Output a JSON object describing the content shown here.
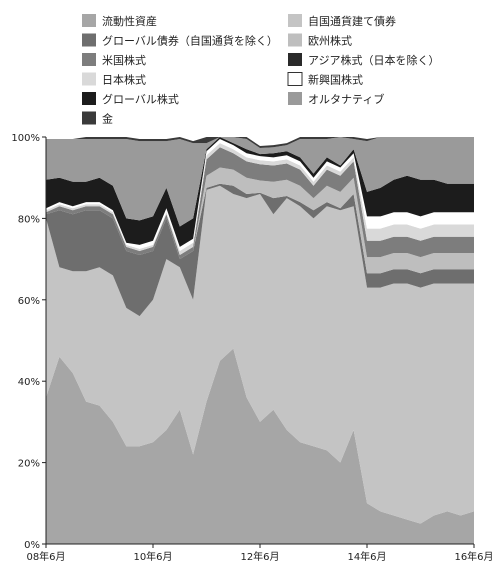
{
  "chart_data": {
    "type": "area",
    "stacked": true,
    "percent_axis": true,
    "x": [
      "2008-06",
      "2008-09",
      "2008-12",
      "2009-03",
      "2009-06",
      "2009-09",
      "2009-12",
      "2010-03",
      "2010-06",
      "2010-09",
      "2010-12",
      "2011-03",
      "2011-06",
      "2011-09",
      "2011-12",
      "2012-03",
      "2012-06",
      "2012-09",
      "2012-12",
      "2013-03",
      "2013-06",
      "2013-09",
      "2013-12",
      "2014-03",
      "2014-06",
      "2014-09",
      "2014-12",
      "2015-03",
      "2015-06",
      "2015-09",
      "2015-12",
      "2016-03",
      "2016-06"
    ],
    "xticks": [
      "08年6月",
      "10年6月",
      "12年6月",
      "14年6月",
      "16年6月"
    ],
    "yticks": [
      "0%",
      "20%",
      "40%",
      "60%",
      "80%",
      "100%"
    ],
    "ylim": [
      0,
      100
    ],
    "xlabel": "",
    "ylabel": "",
    "title": "",
    "legend_position": "top",
    "series": [
      {
        "name": "流動性資産",
        "color": "#a6a6a6",
        "values": [
          36,
          46,
          42,
          35,
          34,
          30,
          24,
          24,
          25,
          28,
          33,
          22,
          35,
          45,
          48,
          36,
          30,
          33,
          28,
          25,
          24,
          23,
          20,
          28,
          10,
          8,
          7,
          6,
          5,
          7,
          8,
          7,
          8
        ]
      },
      {
        "name": "自国通貨建て債券",
        "color": "#c4c4c4",
        "values": [
          44,
          22,
          25,
          32,
          34,
          36,
          34,
          32,
          35,
          42,
          35,
          38,
          52,
          43,
          38,
          49,
          56,
          48,
          57,
          58,
          56,
          60,
          62,
          55,
          53,
          55,
          57,
          58,
          58,
          57,
          56,
          57,
          56
        ]
      },
      {
        "name": "グローバル債券（自国通貨を除く）",
        "color": "#6e6e6e",
        "values": [
          1,
          14,
          14,
          15,
          14,
          14,
          14,
          15,
          12,
          10,
          2,
          12,
          0.5,
          0.5,
          2,
          1,
          0.3,
          4,
          0.5,
          1,
          2,
          1,
          0.5,
          3,
          3.5,
          3.5,
          3.5,
          3.5,
          3.5,
          3.5,
          3.5,
          3.5,
          3.5
        ]
      },
      {
        "name": "欧州株式",
        "color": "#bebebe",
        "values": [
          0,
          0,
          0,
          0,
          0,
          0,
          0,
          0,
          0,
          0,
          0,
          0,
          3,
          4,
          4,
          4,
          3,
          4,
          4,
          4,
          3,
          4,
          4,
          4,
          4,
          4,
          4,
          4,
          4,
          4,
          4,
          4,
          4
        ]
      },
      {
        "name": "米国株式",
        "color": "#7d7d7d",
        "values": [
          0.5,
          1,
          1,
          1,
          1,
          1,
          1,
          1,
          1,
          1,
          1,
          1,
          4,
          5,
          4,
          4,
          4,
          4,
          4,
          4,
          3,
          4,
          4,
          4,
          4,
          4,
          4,
          4,
          4,
          4,
          4,
          4,
          4
        ]
      },
      {
        "name": "アジア株式（日本を除く）",
        "color": "#2a2a2a",
        "values": [
          0,
          0,
          0,
          0,
          0,
          0,
          0,
          0,
          0,
          0,
          0,
          0,
          0,
          0,
          0,
          0,
          0,
          0,
          0,
          0,
          0,
          0,
          0,
          0,
          0,
          0,
          0,
          0,
          0,
          0,
          0,
          0,
          0
        ]
      },
      {
        "name": "日本株式",
        "color": "#d9d9d9",
        "values": [
          0.5,
          0.5,
          0.5,
          0.5,
          0.5,
          0.5,
          0.5,
          0.5,
          0.5,
          0.5,
          1,
          1,
          1,
          1,
          1,
          1,
          1,
          1,
          1,
          1,
          1,
          1,
          1,
          1,
          3,
          3,
          3,
          3,
          3,
          3,
          3,
          3,
          3
        ]
      },
      {
        "name": "新興国株式",
        "color": "#ffffff",
        "values": [
          0.5,
          0.5,
          0.5,
          0.5,
          0.5,
          0.5,
          0.5,
          1,
          1,
          1,
          1,
          1,
          1,
          1,
          1,
          1,
          1,
          1,
          1,
          1,
          1,
          1,
          1,
          1,
          3,
          3,
          3,
          3,
          3,
          3,
          3,
          3,
          3
        ]
      },
      {
        "name": "グローバル株式",
        "color": "#1c1c1c",
        "values": [
          7,
          6,
          6,
          5,
          6,
          6,
          6,
          6,
          6,
          5,
          5,
          5,
          0.5,
          0.5,
          0.5,
          1,
          0.5,
          1,
          1,
          1,
          1,
          1,
          0.5,
          1,
          6,
          7,
          8,
          9,
          9,
          8,
          7,
          7,
          7
        ]
      },
      {
        "name": "オルタナティブ",
        "color": "#9a9a9a",
        "values": [
          10,
          9.5,
          10.5,
          10.5,
          9.5,
          11.5,
          19.5,
          19.5,
          18.5,
          11.5,
          21.5,
          18.5,
          1.5,
          0.5,
          1.5,
          2.5,
          1.5,
          1.5,
          1.5,
          4.5,
          8.5,
          4.5,
          7.5,
          2.5,
          12.5,
          12.5,
          12.5,
          12.5,
          12.5,
          12.5,
          12.5,
          12.5,
          12.5
        ]
      },
      {
        "name": "金",
        "color": "#3a3a3a",
        "values": [
          0,
          0,
          0,
          0.5,
          0.5,
          0.5,
          0.5,
          0.5,
          0.5,
          0.5,
          0.5,
          0.5,
          1.5,
          0.5,
          0.5,
          0.5,
          0.5,
          0.5,
          0.5,
          0.5,
          0.5,
          0.5,
          0.5,
          0.5,
          0.5,
          0.5,
          0.5,
          0.5,
          0.5,
          0.5,
          0.5,
          0.5,
          0.5
        ]
      }
    ],
    "legend_order": [
      "流動性資産",
      "自国通貨建て債券",
      "グローバル債券（自国通貨を除く）",
      "欧州株式",
      "米国株式",
      "アジア株式（日本を除く）",
      "日本株式",
      "新興国株式",
      "グローバル株式",
      "オルタナティブ",
      "金"
    ]
  }
}
